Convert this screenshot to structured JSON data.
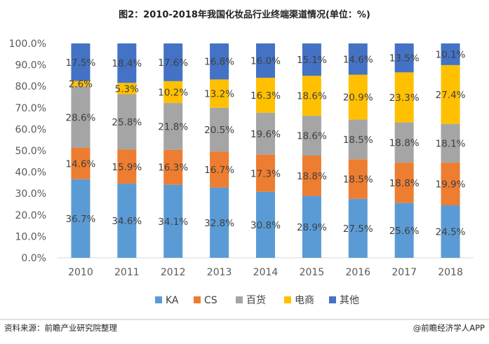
{
  "chart_data": {
    "type": "stacked-bar",
    "title": "图2：2010-2018年我国化妆品行业终端渠道情况(单位：%)",
    "categories": [
      "2010",
      "2011",
      "2012",
      "2013",
      "2014",
      "2015",
      "2016",
      "2017",
      "2018"
    ],
    "ylim": [
      0,
      100
    ],
    "yticks": [
      "0.0%",
      "10.0%",
      "20.0%",
      "30.0%",
      "40.0%",
      "50.0%",
      "60.0%",
      "70.0%",
      "80.0%",
      "90.0%",
      "100.0%"
    ],
    "grid": false,
    "legend_position": "bottom",
    "series": [
      {
        "name": "KA",
        "color": "#5B9BD5",
        "values": [
          36.7,
          34.6,
          34.1,
          32.8,
          30.8,
          28.9,
          27.5,
          25.6,
          24.5
        ],
        "labels": [
          "36.7%",
          "34.6%",
          "34.1%",
          "32.8%",
          "30.8%",
          "28.9%",
          "27.5%",
          "25.6%",
          "24.5%"
        ]
      },
      {
        "name": "CS",
        "color": "#ED7D31",
        "values": [
          14.6,
          15.9,
          16.3,
          16.7,
          17.3,
          18.8,
          18.5,
          18.8,
          19.9
        ],
        "labels": [
          "14.6%",
          "15.9%",
          "16.3%",
          "16.7%",
          "17.3%",
          "18.8%",
          "18.5%",
          "18.8%",
          "19.9%"
        ]
      },
      {
        "name": "百货",
        "color": "#A5A5A5",
        "values": [
          28.6,
          25.8,
          21.8,
          20.5,
          19.6,
          18.6,
          18.5,
          18.8,
          18.1
        ],
        "labels": [
          "28.6%",
          "25.8%",
          "21.8%",
          "20.5%",
          "19.6%",
          "18.6%",
          "18.5%",
          "18.8%",
          "18.1%"
        ]
      },
      {
        "name": "电商",
        "color": "#FFC000",
        "values": [
          2.6,
          5.3,
          10.2,
          13.2,
          16.3,
          18.6,
          20.9,
          23.3,
          27.4
        ],
        "labels": [
          "2.6%",
          "5.3%",
          "10.2%",
          "13.2%",
          "16.3%",
          "18.6%",
          "20.9%",
          "23.3%",
          "27.4%"
        ]
      },
      {
        "name": "其他",
        "color": "#4472C4",
        "values": [
          17.5,
          18.4,
          17.6,
          16.8,
          16.0,
          15.1,
          14.6,
          13.5,
          10.1
        ],
        "labels": [
          "17.5%",
          "18.4%",
          "17.6%",
          "16.8%",
          "16.0%",
          "15.1%",
          "14.6%",
          "13.5%",
          "10.1%"
        ]
      }
    ]
  },
  "footer": {
    "source": "资料来源：前瞻产业研究院整理",
    "credit": "@前瞻经济学人APP"
  }
}
